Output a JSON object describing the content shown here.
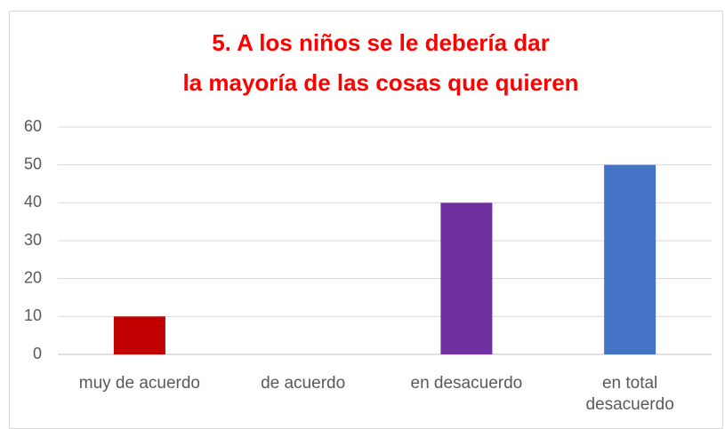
{
  "chart_data": {
    "type": "bar",
    "title": [
      "5. A los niños se le debería dar",
      "la mayoría de las cosas que quieren"
    ],
    "categories": [
      "muy de acuerdo",
      "de acuerdo",
      "en desacuerdo",
      "en total desacuerdo"
    ],
    "values": [
      10,
      0,
      40,
      50
    ],
    "colors": [
      "#c00000",
      null,
      "#7030a0",
      "#4472c4"
    ],
    "ylim": [
      0,
      60
    ],
    "yticks": [
      0,
      10,
      20,
      30,
      40,
      50,
      60
    ],
    "grid": true
  }
}
